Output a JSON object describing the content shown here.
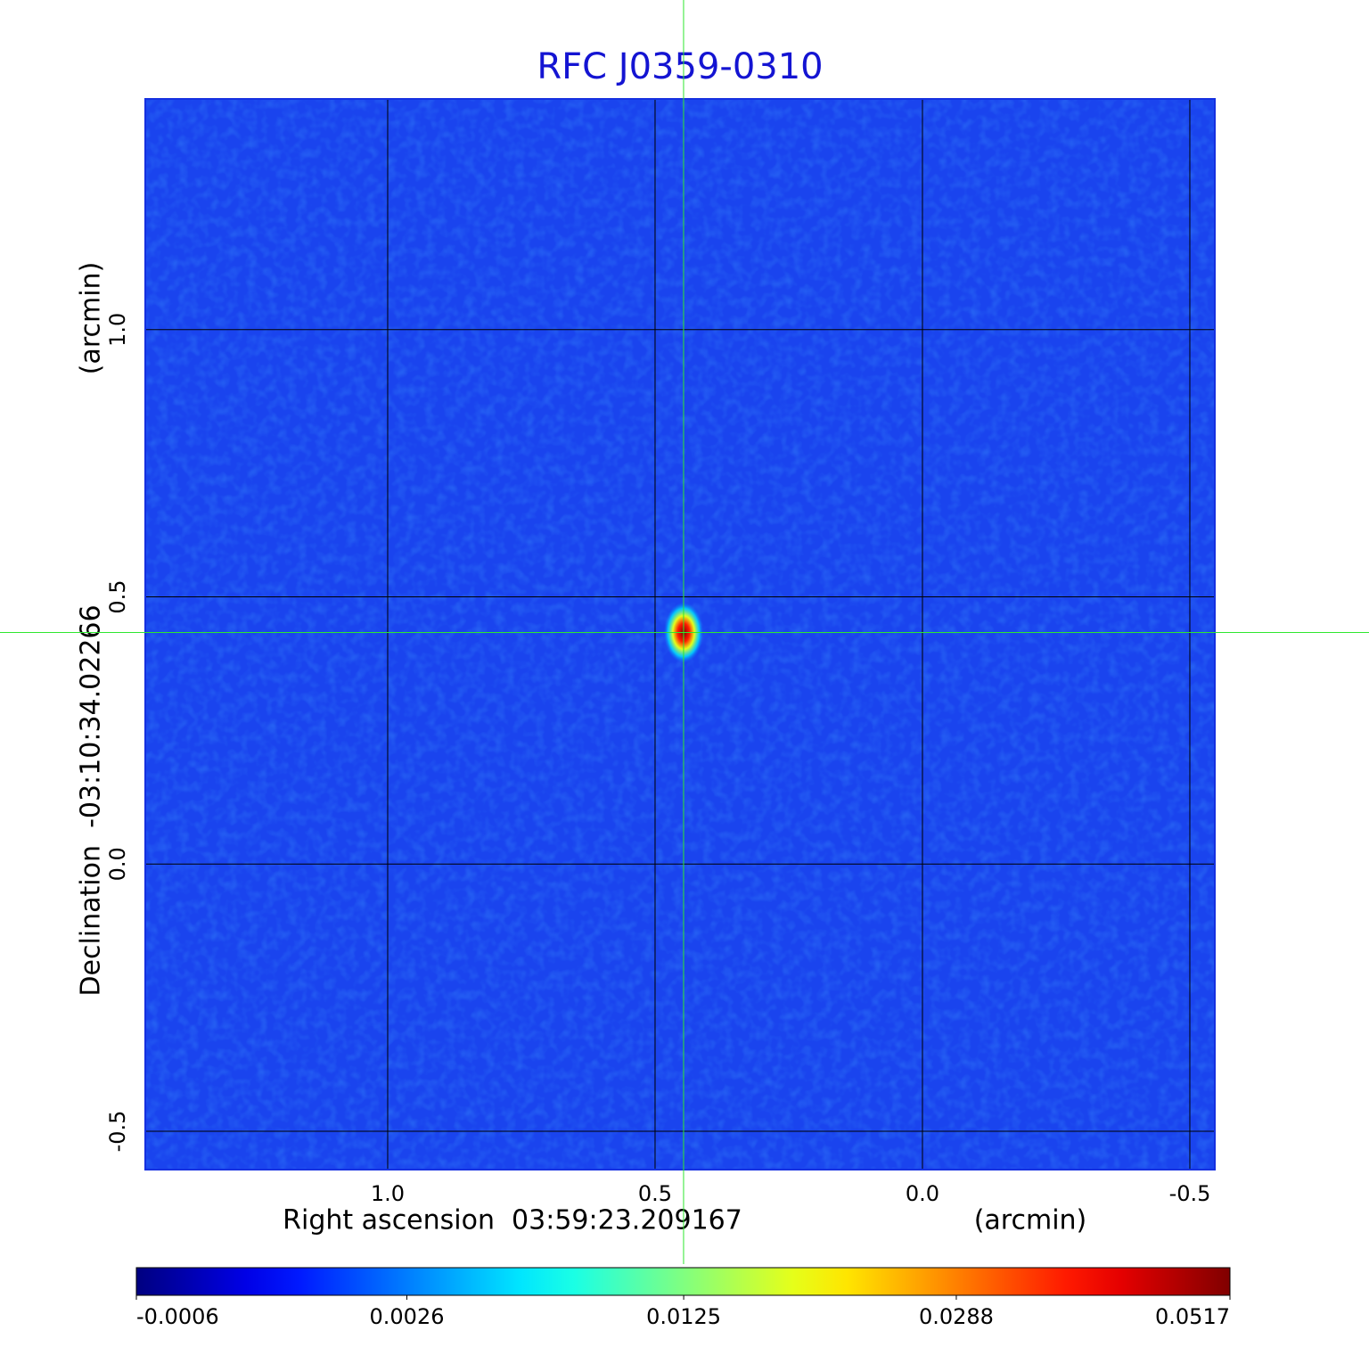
{
  "chart_data": {
    "type": "image",
    "title": "RFC J0359-0310",
    "x_label": "Right ascension  03:59:23.209167",
    "x_unit": "(arcmin)",
    "y_label": "Declination  -03:10:34.02266",
    "y_unit": "(arcmin)",
    "xlim": [
      1.4533,
      -0.5467
    ],
    "ylim": [
      -0.5717,
      1.4317
    ],
    "xticks": [
      {
        "value": 1,
        "label": "1.0"
      },
      0.5,
      {
        "value": 0,
        "label": "0.0"
      },
      -0.5
    ],
    "yticks": [
      {
        "value": 1,
        "label": "1.0"
      },
      0.5,
      {
        "value": 0,
        "label": "0.0"
      },
      -0.5
    ],
    "grid": true,
    "crosshair": {
      "x": 0.4467,
      "y": 0.4333
    },
    "source": {
      "x": 0.4467,
      "y": 0.4333,
      "peak": 0.0517
    },
    "colorbar": {
      "colormap": "jet",
      "scale": "sqrt",
      "lim": [
        -0.0006,
        0.0517
      ],
      "ticks": [
        -0.0006,
        0.0026,
        0.0125,
        0.0288,
        0.0517
      ]
    }
  }
}
